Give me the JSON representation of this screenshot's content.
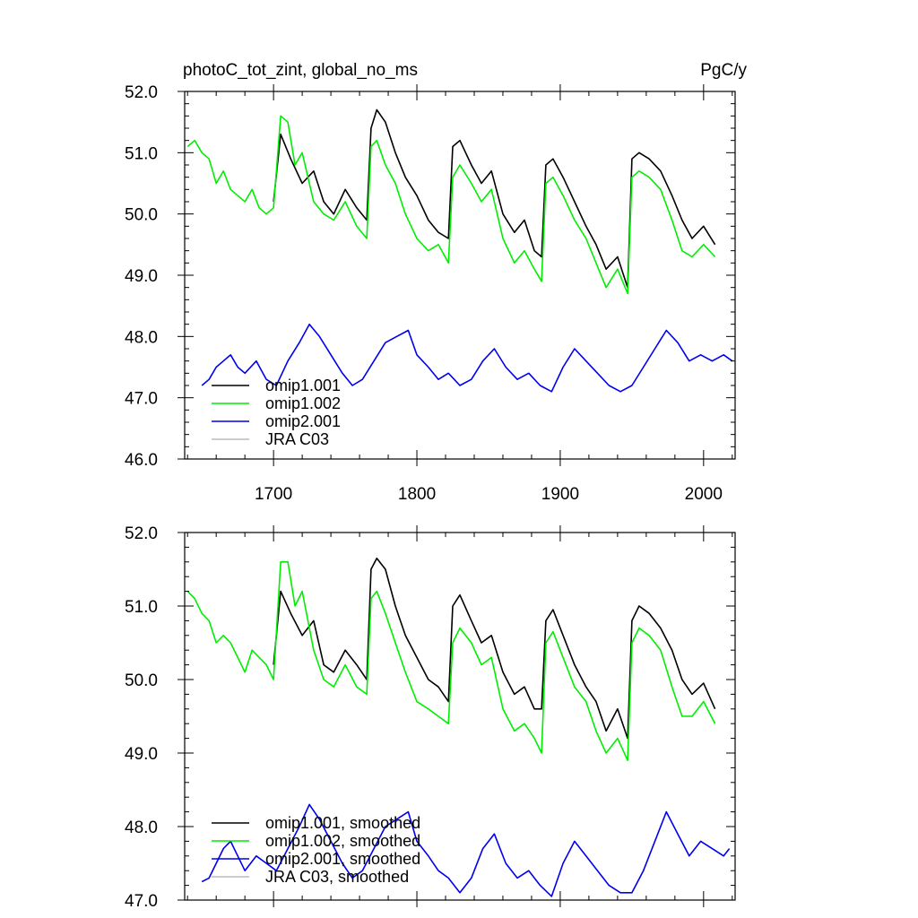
{
  "figure": {
    "title_left": "photoC_tot_zint, global_no_ms",
    "title_right": "PgC/y"
  },
  "chart_data": [
    {
      "type": "line",
      "title": "photoC_tot_zint, global_no_ms",
      "units": "PgC/y",
      "xlim": [
        1638,
        2022
      ],
      "ylim": [
        46.0,
        52.0
      ],
      "x_ticks": [
        1700,
        1800,
        1900,
        2000
      ],
      "x_tick_labels": [
        "1700",
        "1800",
        "1900",
        "2000"
      ],
      "y_ticks": [
        46.0,
        47.0,
        48.0,
        49.0,
        50.0,
        51.0,
        52.0
      ],
      "y_tick_labels": [
        "46.0",
        "47.0",
        "48.0",
        "49.0",
        "50.0",
        "51.0",
        "52.0"
      ],
      "legend_position": "bottom-left",
      "grid": false,
      "series": [
        {
          "name": "omip1.001",
          "color": "#000000",
          "x": [
            1700,
            1705,
            1712,
            1720,
            1728,
            1735,
            1742,
            1750,
            1758,
            1765,
            1768,
            1772,
            1778,
            1785,
            1792,
            1800,
            1808,
            1815,
            1822,
            1825,
            1830,
            1838,
            1845,
            1852,
            1860,
            1868,
            1875,
            1882,
            1887,
            1890,
            1895,
            1902,
            1910,
            1918,
            1925,
            1932,
            1940,
            1947,
            1950,
            1955,
            1962,
            1970,
            1978,
            1985,
            1992,
            2000,
            2008
          ],
          "values": [
            50.2,
            51.3,
            50.9,
            50.5,
            50.7,
            50.2,
            50.0,
            50.4,
            50.1,
            49.9,
            51.4,
            51.7,
            51.5,
            51.0,
            50.6,
            50.3,
            49.9,
            49.7,
            49.6,
            51.1,
            51.2,
            50.8,
            50.5,
            50.7,
            50.0,
            49.7,
            49.9,
            49.4,
            49.3,
            50.8,
            50.9,
            50.6,
            50.2,
            49.8,
            49.5,
            49.1,
            49.3,
            48.8,
            50.9,
            51.0,
            50.9,
            50.7,
            50.3,
            49.9,
            49.6,
            49.8,
            49.5
          ]
        },
        {
          "name": "omip1.002",
          "color": "#00ee00",
          "x": [
            1640,
            1645,
            1650,
            1655,
            1660,
            1665,
            1670,
            1675,
            1680,
            1685,
            1690,
            1695,
            1700,
            1705,
            1710,
            1715,
            1720,
            1728,
            1735,
            1742,
            1750,
            1758,
            1765,
            1768,
            1772,
            1778,
            1785,
            1792,
            1800,
            1808,
            1815,
            1822,
            1825,
            1830,
            1838,
            1845,
            1852,
            1860,
            1868,
            1875,
            1882,
            1887,
            1890,
            1895,
            1902,
            1910,
            1918,
            1925,
            1932,
            1940,
            1947,
            1950,
            1955,
            1962,
            1970,
            1978,
            1985,
            1992,
            2000,
            2008
          ],
          "values": [
            51.1,
            51.2,
            51.0,
            50.9,
            50.5,
            50.7,
            50.4,
            50.3,
            50.2,
            50.4,
            50.1,
            50.0,
            50.1,
            51.6,
            51.5,
            50.8,
            51.0,
            50.2,
            50.0,
            49.9,
            50.2,
            49.8,
            49.6,
            51.1,
            51.2,
            50.8,
            50.5,
            50.0,
            49.6,
            49.4,
            49.5,
            49.2,
            50.6,
            50.8,
            50.5,
            50.2,
            50.4,
            49.6,
            49.2,
            49.4,
            49.1,
            48.9,
            50.5,
            50.6,
            50.3,
            49.9,
            49.6,
            49.2,
            48.8,
            49.1,
            48.7,
            50.6,
            50.7,
            50.6,
            50.4,
            49.9,
            49.4,
            49.3,
            49.5,
            49.3
          ]
        },
        {
          "name": "omip2.001",
          "color": "#0000ee",
          "x": [
            1650,
            1655,
            1660,
            1665,
            1670,
            1675,
            1680,
            1688,
            1695,
            1702,
            1710,
            1718,
            1725,
            1732,
            1740,
            1748,
            1755,
            1762,
            1770,
            1778,
            1786,
            1794,
            1800,
            1808,
            1815,
            1822,
            1830,
            1838,
            1846,
            1854,
            1862,
            1870,
            1878,
            1886,
            1894,
            1902,
            1910,
            1918,
            1926,
            1934,
            1942,
            1950,
            1958,
            1966,
            1974,
            1982,
            1990,
            1998,
            2006,
            2014,
            2020
          ],
          "values": [
            47.2,
            47.3,
            47.5,
            47.6,
            47.7,
            47.5,
            47.4,
            47.6,
            47.3,
            47.2,
            47.6,
            47.9,
            48.2,
            48.0,
            47.7,
            47.4,
            47.2,
            47.3,
            47.6,
            47.9,
            48.0,
            48.1,
            47.7,
            47.5,
            47.3,
            47.4,
            47.2,
            47.3,
            47.6,
            47.8,
            47.5,
            47.3,
            47.4,
            47.2,
            47.1,
            47.5,
            47.8,
            47.6,
            47.4,
            47.2,
            47.1,
            47.2,
            47.5,
            47.8,
            48.1,
            47.9,
            47.6,
            47.7,
            47.6,
            47.7,
            47.6
          ]
        },
        {
          "name": "JRA C03",
          "color": "#bbbbbb",
          "x": [],
          "values": []
        }
      ]
    },
    {
      "type": "line",
      "xlim": [
        1638,
        2022
      ],
      "ylim": [
        47.0,
        52.0
      ],
      "x_ticks": [
        1700,
        1800,
        1900,
        2000
      ],
      "y_ticks": [
        47.0,
        48.0,
        49.0,
        50.0,
        51.0,
        52.0
      ],
      "y_tick_labels": [
        "47.0",
        "48.0",
        "49.0",
        "50.0",
        "51.0",
        "52.0"
      ],
      "legend_position": "bottom-left",
      "grid": false,
      "series": [
        {
          "name": "omip1.001, smoothed",
          "color": "#000000",
          "x": [
            1700,
            1705,
            1712,
            1720,
            1728,
            1735,
            1742,
            1750,
            1758,
            1765,
            1768,
            1772,
            1778,
            1785,
            1792,
            1800,
            1808,
            1815,
            1822,
            1825,
            1830,
            1838,
            1845,
            1852,
            1860,
            1868,
            1875,
            1882,
            1887,
            1890,
            1895,
            1902,
            1910,
            1918,
            1925,
            1932,
            1940,
            1947,
            1950,
            1955,
            1962,
            1970,
            1978,
            1985,
            1992,
            2000,
            2008
          ],
          "values": [
            50.2,
            51.2,
            50.9,
            50.6,
            50.8,
            50.2,
            50.1,
            50.4,
            50.2,
            50.0,
            51.5,
            51.65,
            51.5,
            51.0,
            50.6,
            50.3,
            50.0,
            49.9,
            49.7,
            51.0,
            51.15,
            50.8,
            50.5,
            50.6,
            50.1,
            49.8,
            49.9,
            49.6,
            49.6,
            50.8,
            50.95,
            50.6,
            50.2,
            49.9,
            49.7,
            49.3,
            49.6,
            49.2,
            50.8,
            51.0,
            50.9,
            50.7,
            50.4,
            50.0,
            49.8,
            49.95,
            49.6
          ]
        },
        {
          "name": "omip1.002, smoothed",
          "color": "#00ee00",
          "x": [
            1640,
            1645,
            1650,
            1655,
            1660,
            1665,
            1670,
            1675,
            1680,
            1685,
            1690,
            1695,
            1700,
            1705,
            1710,
            1715,
            1720,
            1728,
            1735,
            1742,
            1750,
            1758,
            1765,
            1768,
            1772,
            1778,
            1785,
            1792,
            1800,
            1808,
            1815,
            1822,
            1825,
            1830,
            1838,
            1845,
            1852,
            1860,
            1868,
            1875,
            1882,
            1887,
            1890,
            1895,
            1902,
            1910,
            1918,
            1925,
            1932,
            1940,
            1947,
            1950,
            1955,
            1962,
            1970,
            1978,
            1985,
            1992,
            2000,
            2008
          ],
          "values": [
            51.2,
            51.1,
            50.9,
            50.8,
            50.5,
            50.6,
            50.5,
            50.3,
            50.1,
            50.4,
            50.3,
            50.2,
            50.0,
            51.6,
            51.6,
            51.0,
            51.2,
            50.4,
            50.0,
            49.9,
            50.2,
            49.9,
            49.8,
            51.1,
            51.2,
            50.9,
            50.5,
            50.1,
            49.7,
            49.6,
            49.5,
            49.4,
            50.5,
            50.7,
            50.5,
            50.2,
            50.3,
            49.6,
            49.3,
            49.4,
            49.2,
            49.0,
            50.5,
            50.65,
            50.3,
            49.9,
            49.7,
            49.3,
            49.0,
            49.2,
            48.9,
            50.5,
            50.7,
            50.6,
            50.4,
            49.9,
            49.5,
            49.5,
            49.7,
            49.4
          ]
        },
        {
          "name": "omip2.001, smoothed",
          "color": "#0000ee",
          "x": [
            1650,
            1655,
            1660,
            1665,
            1670,
            1675,
            1680,
            1688,
            1695,
            1702,
            1710,
            1718,
            1725,
            1732,
            1740,
            1748,
            1755,
            1762,
            1770,
            1778,
            1786,
            1794,
            1800,
            1808,
            1815,
            1822,
            1830,
            1838,
            1846,
            1854,
            1862,
            1870,
            1878,
            1886,
            1894,
            1902,
            1910,
            1918,
            1926,
            1934,
            1942,
            1950,
            1958,
            1966,
            1974,
            1982,
            1990,
            1998,
            2006,
            2014,
            2018
          ],
          "values": [
            47.25,
            47.3,
            47.5,
            47.7,
            47.8,
            47.6,
            47.4,
            47.6,
            47.5,
            47.4,
            47.7,
            48.0,
            48.3,
            48.1,
            47.8,
            47.5,
            47.3,
            47.4,
            47.7,
            48.0,
            48.1,
            48.2,
            47.8,
            47.6,
            47.4,
            47.3,
            47.1,
            47.3,
            47.7,
            47.9,
            47.5,
            47.3,
            47.4,
            47.2,
            47.05,
            47.5,
            47.8,
            47.6,
            47.4,
            47.2,
            47.1,
            47.1,
            47.4,
            47.8,
            48.2,
            47.9,
            47.6,
            47.8,
            47.7,
            47.6,
            47.7
          ]
        },
        {
          "name": "JRA C03, smoothed",
          "color": "#bbbbbb",
          "x": [],
          "values": []
        }
      ]
    }
  ]
}
